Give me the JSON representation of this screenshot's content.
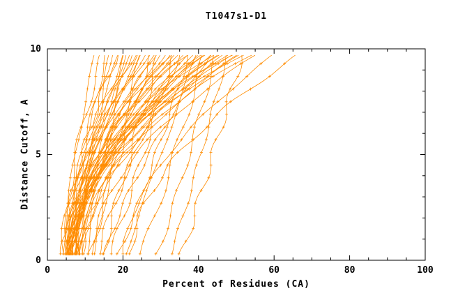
{
  "chart_data": {
    "type": "line",
    "title": "T1047s1-D1",
    "xlabel": "Percent of Residues (CA)",
    "ylabel": "Distance Cutoff, A",
    "xlim": [
      0,
      100
    ],
    "ylim": [
      0,
      10
    ],
    "x_major_ticks": [
      0,
      20,
      40,
      60,
      80,
      100
    ],
    "x_minor_step": 5,
    "y_major_ticks": [
      0,
      5,
      10
    ],
    "y_minor_step": 1,
    "legend": "none",
    "grid": false,
    "line_color": "#ff8c00",
    "axis_color": "#000000",
    "curve_model": "x(y) = a + (b-a)*(y/10)^p, estimated from pixel positions",
    "curves": [
      {
        "a": 4,
        "b": 13,
        "p": 1.4
      },
      {
        "a": 4,
        "b": 15,
        "p": 1.6
      },
      {
        "a": 5,
        "b": 16,
        "p": 1.3
      },
      {
        "a": 5,
        "b": 18,
        "p": 1.7
      },
      {
        "a": 4,
        "b": 19,
        "p": 1.5
      },
      {
        "a": 6,
        "b": 20,
        "p": 1.8
      },
      {
        "a": 5,
        "b": 21,
        "p": 1.4
      },
      {
        "a": 6,
        "b": 22,
        "p": 2.0
      },
      {
        "a": 5,
        "b": 23,
        "p": 1.6
      },
      {
        "a": 7,
        "b": 24,
        "p": 1.9
      },
      {
        "a": 6,
        "b": 25,
        "p": 1.5
      },
      {
        "a": 4,
        "b": 26,
        "p": 1.7
      },
      {
        "a": 7,
        "b": 27,
        "p": 2.1
      },
      {
        "a": 5,
        "b": 28,
        "p": 1.8
      },
      {
        "a": 6,
        "b": 29,
        "p": 1.4
      },
      {
        "a": 8,
        "b": 30,
        "p": 2.2
      },
      {
        "a": 5,
        "b": 31,
        "p": 1.6
      },
      {
        "a": 7,
        "b": 32,
        "p": 1.9
      },
      {
        "a": 6,
        "b": 33,
        "p": 1.5
      },
      {
        "a": 8,
        "b": 34,
        "p": 2.0
      },
      {
        "a": 5,
        "b": 35,
        "p": 1.7
      },
      {
        "a": 7,
        "b": 36,
        "p": 2.3
      },
      {
        "a": 6,
        "b": 37,
        "p": 1.8
      },
      {
        "a": 8,
        "b": 38,
        "p": 1.5
      },
      {
        "a": 5,
        "b": 39,
        "p": 2.1
      },
      {
        "a": 7,
        "b": 40,
        "p": 1.9
      },
      {
        "a": 6,
        "b": 41,
        "p": 1.6
      },
      {
        "a": 8,
        "b": 42,
        "p": 2.2
      },
      {
        "a": 6,
        "b": 43,
        "p": 1.8
      },
      {
        "a": 7,
        "b": 44,
        "p": 2.0
      },
      {
        "a": 5,
        "b": 45,
        "p": 1.7
      },
      {
        "a": 8,
        "b": 46,
        "p": 2.4
      },
      {
        "a": 6,
        "b": 47,
        "p": 1.9
      },
      {
        "a": 7,
        "b": 48,
        "p": 2.1
      },
      {
        "a": 9,
        "b": 49,
        "p": 1.8
      },
      {
        "a": 6,
        "b": 50,
        "p": 2.2
      },
      {
        "a": 8,
        "b": 51,
        "p": 2.0
      },
      {
        "a": 7,
        "b": 52,
        "p": 2.3
      },
      {
        "a": 9,
        "b": 53,
        "p": 1.9
      },
      {
        "a": 7,
        "b": 54,
        "p": 2.1
      },
      {
        "a": 8,
        "b": 55,
        "p": 2.4
      },
      {
        "a": 10,
        "b": 57,
        "p": 2.2
      },
      {
        "a": 12,
        "b": 58,
        "p": 2.0
      },
      {
        "a": 20,
        "b": 62,
        "p": 1.8
      },
      {
        "a": 22,
        "b": 69,
        "p": 1.9
      },
      {
        "a": 10,
        "b": 22,
        "p": 1.2
      },
      {
        "a": 12,
        "b": 25,
        "p": 1.1
      },
      {
        "a": 14,
        "b": 30,
        "p": 1.0
      },
      {
        "a": 16,
        "b": 34,
        "p": 0.95
      },
      {
        "a": 18,
        "b": 38,
        "p": 0.9
      },
      {
        "a": 20,
        "b": 40,
        "p": 1.0
      },
      {
        "a": 24,
        "b": 42,
        "p": 0.9
      },
      {
        "a": 28,
        "b": 45,
        "p": 0.85
      },
      {
        "a": 32,
        "b": 48,
        "p": 0.9
      },
      {
        "a": 35,
        "b": 52,
        "p": 0.95
      },
      {
        "a": 8,
        "b": 17,
        "p": 1.2
      },
      {
        "a": 9,
        "b": 21,
        "p": 1.3
      },
      {
        "a": 11,
        "b": 28,
        "p": 1.1
      },
      {
        "a": 13,
        "b": 36,
        "p": 1.2
      },
      {
        "a": 15,
        "b": 44,
        "p": 1.3
      }
    ]
  }
}
